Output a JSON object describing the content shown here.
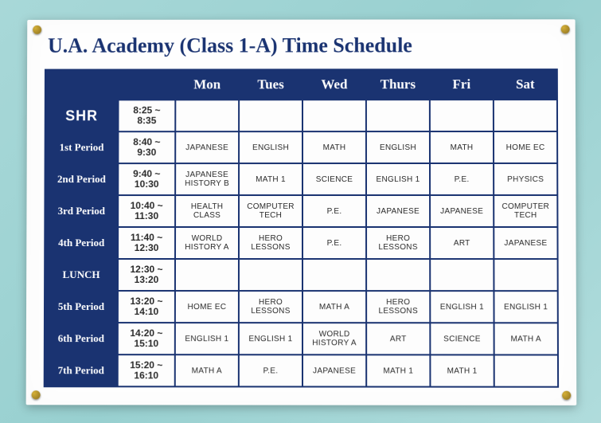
{
  "title": "U.A. Academy (Class 1-A) Time Schedule",
  "colors": {
    "header_bg": "#1a3371",
    "header_text": "#ffffff",
    "paper_bg": "#fefefe",
    "wall_bg": "#a8d8d8",
    "border": "#1a3371",
    "title_color": "#1a3371"
  },
  "typography": {
    "title_fontsize": 26,
    "day_header_fontsize": 17,
    "period_label_fontsize": 13,
    "time_fontsize": 12,
    "subject_fontsize": 10
  },
  "days": [
    "Mon",
    "Tues",
    "Wed",
    "Thurs",
    "Fri",
    "Sat"
  ],
  "rows": [
    {
      "period": "SHR",
      "time": "8:25 ~\n8:35",
      "cells": [
        "",
        "",
        "",
        "",
        "",
        ""
      ]
    },
    {
      "period": "1st Period",
      "time": "8:40 ~\n9:30",
      "cells": [
        "JAPANESE",
        "ENGLISH",
        "MATH",
        "ENGLISH",
        "MATH",
        "HOME EC"
      ]
    },
    {
      "period": "2nd Period",
      "time": "9:40 ~\n10:30",
      "cells": [
        "JAPANESE HISTORY B",
        "MATH 1",
        "SCIENCE",
        "ENGLISH 1",
        "P.E.",
        "PHYSICS"
      ]
    },
    {
      "period": "3rd Period",
      "time": "10:40 ~\n11:30",
      "cells": [
        "HEALTH CLASS",
        "COMPUTER TECH",
        "P.E.",
        "JAPANESE",
        "JAPANESE",
        "COMPUTER TECH"
      ]
    },
    {
      "period": "4th Period",
      "time": "11:40 ~\n12:30",
      "cells": [
        "WORLD HISTORY A",
        "HERO LESSONS",
        "P.E.",
        "HERO LESSONS",
        "ART",
        "JAPANESE"
      ]
    },
    {
      "period": "LUNCH",
      "time": "12:30 ~\n13:20",
      "cells": [
        "",
        "",
        "",
        "",
        "",
        ""
      ]
    },
    {
      "period": "5th Period",
      "time": "13:20 ~\n14:10",
      "cells": [
        "HOME EC",
        "HERO LESSONS",
        "MATH A",
        "HERO LESSONS",
        "ENGLISH 1",
        "ENGLISH 1"
      ]
    },
    {
      "period": "6th Period",
      "time": "14:20 ~\n15:10",
      "cells": [
        "ENGLISH 1",
        "ENGLISH 1",
        "WORLD HISTORY A",
        "ART",
        "SCIENCE",
        "MATH A"
      ]
    },
    {
      "period": "7th Period",
      "time": "15:20 ~\n16:10",
      "cells": [
        "MATH A",
        "P.E.",
        "JAPANESE",
        "MATH 1",
        "MATH 1",
        ""
      ]
    }
  ]
}
